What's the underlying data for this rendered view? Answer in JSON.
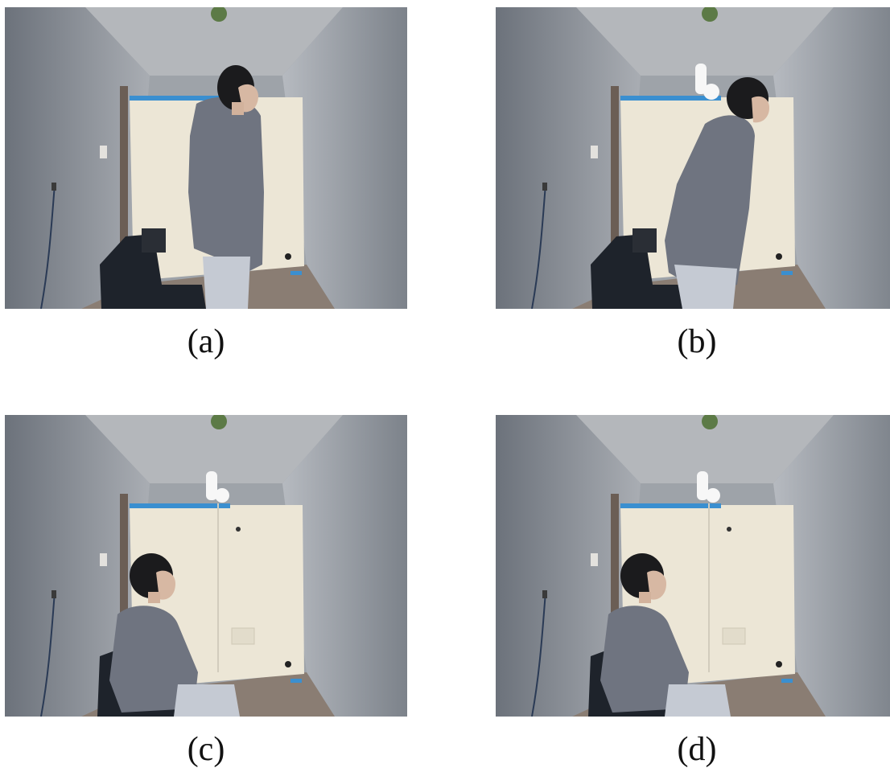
{
  "panels": [
    {
      "id": "a",
      "caption": "(a)",
      "pose": "standing"
    },
    {
      "id": "b",
      "caption": "(b)",
      "pose": "bending"
    },
    {
      "id": "c",
      "caption": "(c)",
      "pose": "sitting"
    },
    {
      "id": "d",
      "caption": "(d)",
      "pose": "sitting"
    }
  ],
  "colors": {
    "wall_left": "#8f949c",
    "wall_right": "#9aa0a8",
    "ceiling": "#a7abb0",
    "floor": "#8a7d73",
    "cabinet": "#ece6d6",
    "jacket": "#6f7480",
    "hair": "#1b1b1d",
    "pants": "#c5cad3",
    "chair": "#1e232b",
    "tape": "#3a8fd0"
  }
}
